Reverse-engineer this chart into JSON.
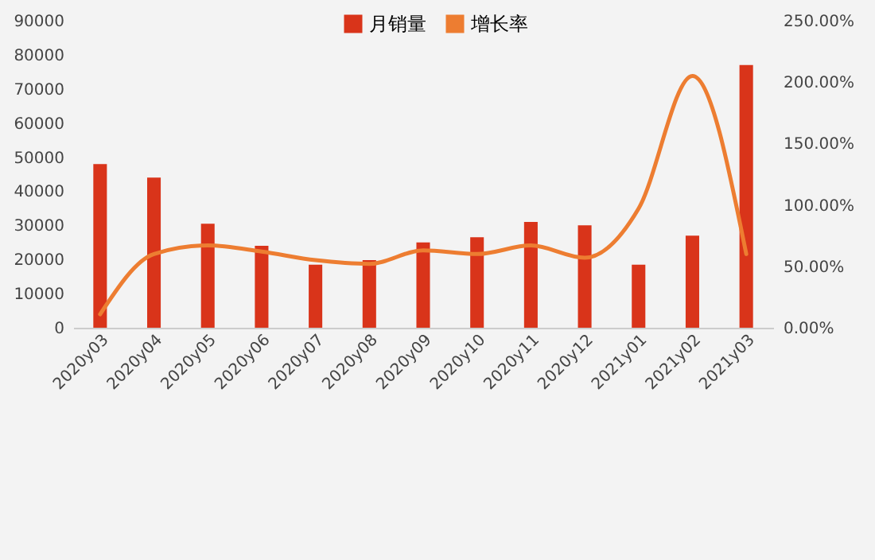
{
  "chart_data": {
    "type": "bar",
    "categories": [
      "2020y03",
      "2020y04",
      "2020y05",
      "2020y06",
      "2020y07",
      "2020y08",
      "2020y09",
      "2020y10",
      "2020y11",
      "2020y12",
      "2021y01",
      "2021y02",
      "2021y03"
    ],
    "series": [
      {
        "name": "月销量",
        "color": "#d9341a",
        "values": [
          48000,
          44000,
          30500,
          24000,
          18500,
          19800,
          25000,
          26500,
          31000,
          30000,
          18500,
          27000,
          77000
        ]
      },
      {
        "name": "增长率",
        "type": "line",
        "axis": "y2",
        "color": "#ed7d31",
        "values": [
          11,
          60,
          67,
          62,
          55,
          52,
          63,
          60,
          67,
          57,
          97,
          205,
          60
        ]
      }
    ],
    "ylim": [
      0,
      90000
    ],
    "yticks": [
      0,
      10000,
      20000,
      30000,
      40000,
      50000,
      60000,
      70000,
      80000,
      90000
    ],
    "y2lim": [
      0,
      250
    ],
    "y2ticks": [
      {
        "value": 0,
        "label": "0.00%"
      },
      {
        "value": 50,
        "label": "50.00%"
      },
      {
        "value": 100,
        "label": "100.00%"
      },
      {
        "value": 150,
        "label": "150.00%"
      },
      {
        "value": 200,
        "label": "200.00%"
      },
      {
        "value": 250,
        "label": "250.00%"
      }
    ],
    "legend": "top",
    "marker": "none",
    "grid": false
  }
}
